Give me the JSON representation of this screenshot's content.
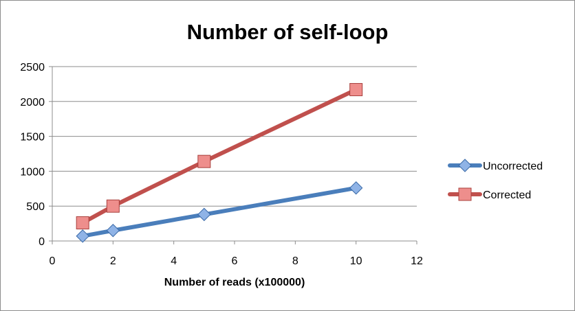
{
  "chart_data": {
    "type": "line",
    "title": "Number of self-loop",
    "xlabel": "Number of reads (x100000)",
    "ylabel": "",
    "xlim": [
      0,
      12
    ],
    "ylim": [
      0,
      2500
    ],
    "xticks": [
      0,
      2,
      4,
      6,
      8,
      10,
      12
    ],
    "yticks": [
      0,
      500,
      1000,
      1500,
      2000,
      2500
    ],
    "x": [
      1,
      2,
      5,
      10
    ],
    "grid": true,
    "legend_position": "right",
    "series": [
      {
        "name": "Uncorrected",
        "values": [
          70,
          150,
          380,
          760
        ],
        "color": "#4a7ebb",
        "marker": "diamond"
      },
      {
        "name": "Corrected",
        "values": [
          260,
          500,
          1140,
          2170
        ],
        "color": "#c0504d",
        "marker": "square"
      }
    ]
  }
}
